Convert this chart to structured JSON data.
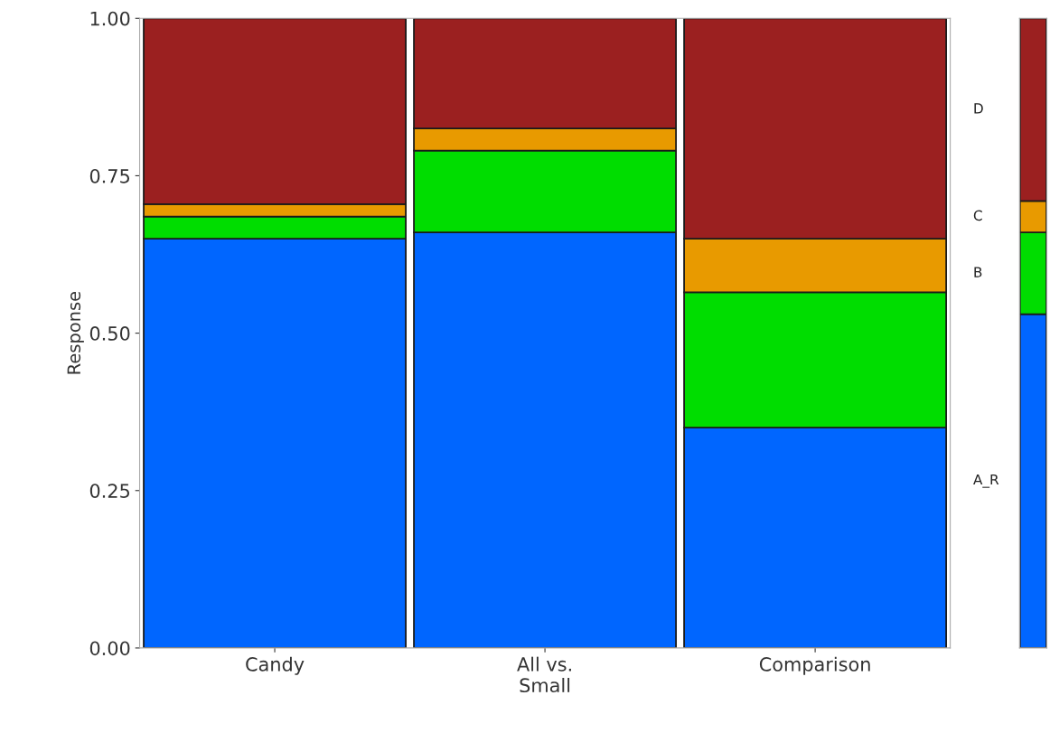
{
  "chart_data": [
    {
      "type": "bar",
      "stacked": true,
      "ylabel": "Response",
      "categories": [
        "Candy",
        "All vs.\nSmall",
        "Comparison"
      ],
      "ylim": [
        0,
        1
      ],
      "yticks": [
        {
          "value": 0,
          "label": "0.00"
        },
        {
          "value": 0.25,
          "label": "0.25"
        },
        {
          "value": 0.5,
          "label": "0.50"
        },
        {
          "value": 0.75,
          "label": "0.75"
        },
        {
          "value": 1,
          "label": "1.00"
        }
      ],
      "grid": false,
      "legend": false,
      "series": [
        {
          "color": "#0066ff",
          "values": [
            0.65,
            0.66,
            0.35
          ]
        },
        {
          "color": "#00dd00",
          "values": [
            0.035,
            0.13,
            0.215
          ]
        },
        {
          "color": "#e89a00",
          "values": [
            0.02,
            0.035,
            0.085
          ]
        },
        {
          "color": "#9b2020",
          "values": [
            0.295,
            0.175,
            0.35
          ]
        }
      ]
    },
    {
      "type": "bar",
      "stacked": true,
      "categories": [
        null
      ],
      "ylim": [
        0,
        1
      ],
      "tick_labels": false,
      "grid": false,
      "legend": false,
      "series": [
        {
          "name": "A_R",
          "color": "#0066ff",
          "values": [
            0.53
          ]
        },
        {
          "name": "B",
          "color": "#00dd00",
          "values": [
            0.13
          ]
        },
        {
          "name": "C",
          "color": "#e89a00",
          "values": [
            0.05
          ]
        },
        {
          "name": "D",
          "color": "#9b2020",
          "values": [
            0.29
          ]
        }
      ]
    }
  ]
}
